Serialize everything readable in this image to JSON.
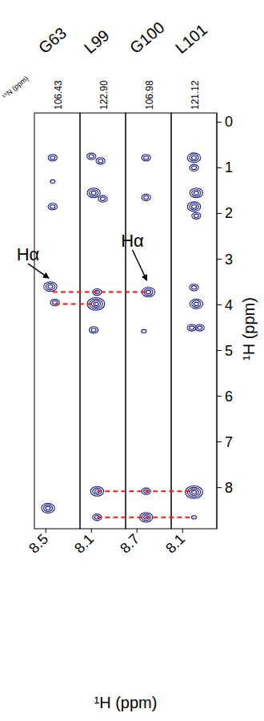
{
  "chart_data": {
    "type": "nmr_strip",
    "color": "#1c1c85",
    "n15_label": "¹⁵N (ppm)",
    "xlabel": "¹H (ppm)",
    "ylabel": "¹H (ppm)",
    "ylim": [
      -0.2,
      8.9
    ],
    "yticks": [
      0,
      1,
      2,
      3,
      4,
      5,
      6,
      7,
      8
    ],
    "strips": [
      {
        "label": "G63",
        "n15": {
          "value": 106.43,
          "label": "106.43"
        },
        "xlim": [
          8.6,
          8.2
        ],
        "xticks": [
          8.5
        ],
        "peaks": {
          "x": [
            8.44,
            8.44,
            8.44,
            8.46,
            8.42,
            8.48
          ],
          "y": [
            0.78,
            1.3,
            1.85,
            3.6,
            3.95,
            8.45
          ],
          "levels": [
            2,
            1,
            2,
            3,
            2,
            3
          ]
        }
      },
      {
        "label": "L99",
        "n15": {
          "value": 122.9,
          "label": "122.90"
        },
        "xlim": [
          8.2,
          7.8
        ],
        "xticks": [
          8.1
        ],
        "peaks": {
          "x": [
            8.1,
            8.02,
            8.08,
            8.0,
            8.05,
            8.06,
            8.08,
            8.05,
            8.05
          ],
          "y": [
            0.75,
            0.85,
            1.55,
            1.68,
            3.72,
            3.98,
            4.55,
            8.08,
            8.65
          ],
          "levels": [
            2,
            2,
            3,
            2,
            2,
            4,
            2,
            3,
            2
          ]
        }
      },
      {
        "label": "G100",
        "n15": {
          "value": 106.98,
          "label": "106.98"
        },
        "xlim": [
          8.8,
          8.4
        ],
        "xticks": [
          8.7
        ],
        "peaks": {
          "x": [
            8.62,
            8.62,
            8.6,
            8.64,
            8.62,
            8.62
          ],
          "y": [
            0.78,
            1.65,
            3.72,
            4.58,
            8.08,
            8.65
          ],
          "levels": [
            2,
            2,
            3,
            1,
            2,
            3
          ]
        }
      },
      {
        "label": "L101",
        "n15": {
          "value": 121.12,
          "label": "121.12"
        },
        "xlim": [
          8.2,
          7.8
        ],
        "xticks": [
          8.1
        ],
        "peaks": {
          "x": [
            8.0,
            8.0,
            7.98,
            8.0,
            7.98,
            8.0,
            7.98,
            8.02,
            7.95,
            8.0,
            8.0
          ],
          "y": [
            0.78,
            1.0,
            1.55,
            1.85,
            2.05,
            3.62,
            3.98,
            4.5,
            4.5,
            8.1,
            8.65
          ],
          "levels": [
            3,
            2,
            3,
            3,
            2,
            2,
            3,
            2,
            2,
            4,
            1
          ]
        }
      }
    ],
    "connections": [
      {
        "y": 3.72,
        "strips": [
          "G63",
          "G100"
        ],
        "x": [
          8.44,
          8.6
        ],
        "color": "#e0201b",
        "line_style": "dashed"
      },
      {
        "y": 3.98,
        "strips": [
          "G63",
          "L99"
        ],
        "x": [
          8.42,
          8.06
        ],
        "color": "#e0201b",
        "line_style": "dashed"
      },
      {
        "y": 8.08,
        "strips": [
          "L99",
          "L101"
        ],
        "x": [
          8.05,
          8.0
        ],
        "color": "#e0201b",
        "line_style": "dashed"
      },
      {
        "y": 8.65,
        "strips": [
          "L99",
          "L101"
        ],
        "x": [
          8.05,
          8.0
        ],
        "color": "#e0201b",
        "line_style": "dashed"
      }
    ],
    "annotations": [
      {
        "text": "Hα",
        "strip": "G63",
        "x": 8.46,
        "y": 3.45
      },
      {
        "text": "Hα",
        "strip": "G100",
        "x": 8.6,
        "y": 3.5
      }
    ]
  }
}
